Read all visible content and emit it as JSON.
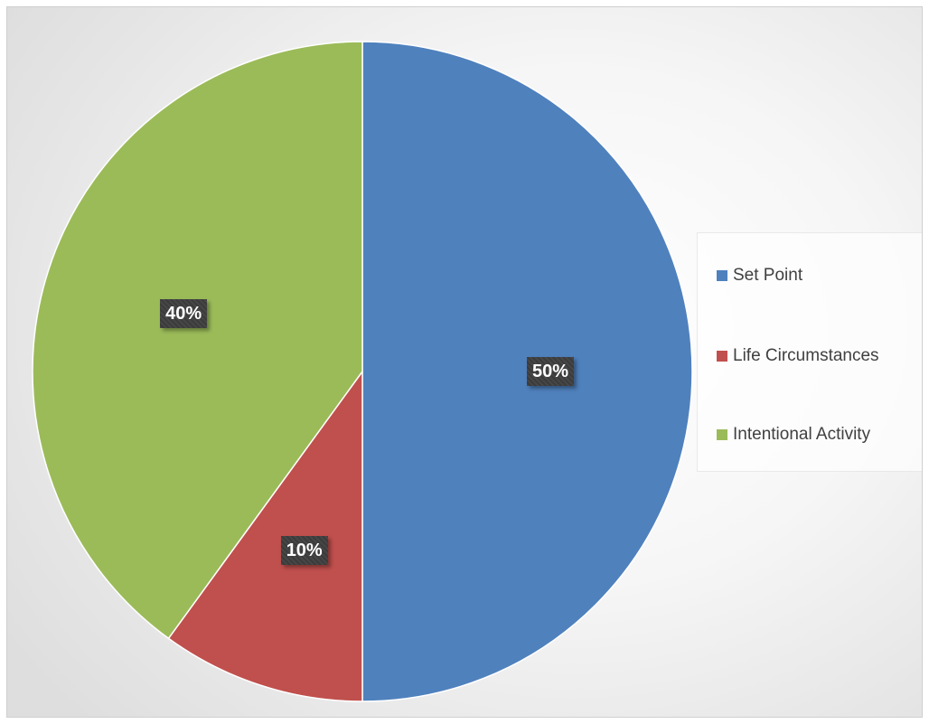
{
  "chart_data": {
    "type": "pie",
    "title": "",
    "categories": [
      "Set Point",
      "Life Circumstances",
      "Intentional Activity"
    ],
    "values": [
      50,
      10,
      40
    ],
    "data_labels": [
      "50%",
      "10%",
      "40%"
    ],
    "colors": [
      "#4f81bd",
      "#c0504d",
      "#9bbb59"
    ],
    "legend_position": "right",
    "start_angle": "top",
    "direction": "clockwise"
  }
}
